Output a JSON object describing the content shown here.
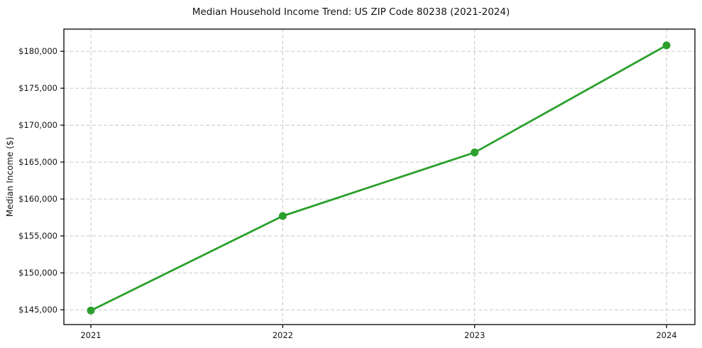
{
  "chart_data": {
    "type": "line",
    "title": "Median Household Income Trend: US ZIP Code 80238 (2021-2024)",
    "xlabel": "",
    "ylabel": "Median Income ($)",
    "categories": [
      "2021",
      "2022",
      "2023",
      "2024"
    ],
    "series": [
      {
        "name": "Median Household Income",
        "values": [
          144900,
          157700,
          166300,
          180800
        ]
      }
    ],
    "ylim": [
      143000,
      183000
    ],
    "yticks": [
      145000,
      150000,
      155000,
      160000,
      165000,
      170000,
      175000,
      180000
    ],
    "ytick_labels": [
      "$145,000",
      "$150,000",
      "$155,000",
      "$160,000",
      "$165,000",
      "$170,000",
      "$175,000",
      "$180,000"
    ],
    "grid": true,
    "legend": "none",
    "line_color": "#2ca02c",
    "marker": "circle",
    "grid_color": "#c9c9c9",
    "frame_color": "#000000",
    "text_color": "#141414",
    "background_color": "#ffffff"
  }
}
